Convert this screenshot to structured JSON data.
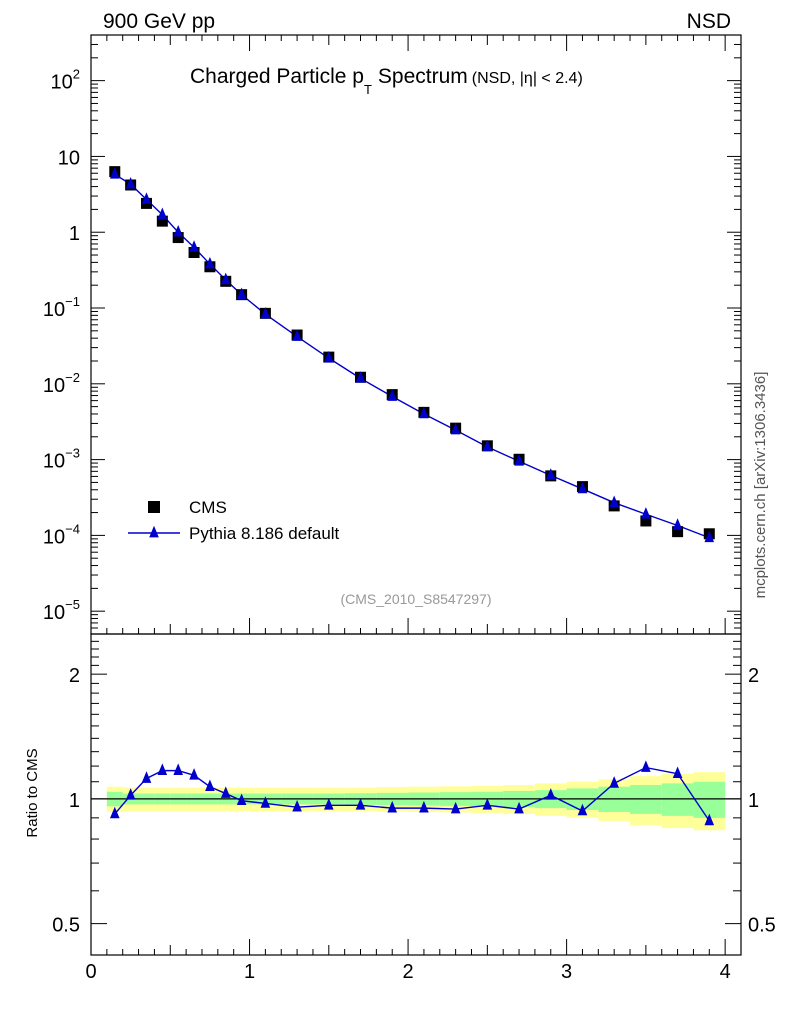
{
  "header": {
    "left": "900 GeV pp",
    "right": "NSD"
  },
  "side_label": "mcplots.cern.ch [arXiv:1306.3436]",
  "chart_data": [
    {
      "type": "scatter",
      "panel": "main",
      "title_main": "Charged Particle p",
      "title_sub": "T",
      "title_word": "Spectrum",
      "title_note": "(NSD, |η| < 2.4)",
      "watermark": "(CMS_2010_S8547297)",
      "y_log": true,
      "ylim": [
        5e-06,
        400
      ],
      "xlim": [
        0,
        4.1
      ],
      "ytick_labels": [
        {
          "base": "10",
          "exp": "2",
          "value": 100
        },
        {
          "base": "10",
          "exp": "",
          "value": 10
        },
        {
          "base": "1",
          "exp": "",
          "value": 1
        },
        {
          "base": "10",
          "exp": "−1",
          "value": 0.1
        },
        {
          "base": "10",
          "exp": "−2",
          "value": 0.01
        },
        {
          "base": "10",
          "exp": "−3",
          "value": 0.001
        },
        {
          "base": "10",
          "exp": "−4",
          "value": 0.0001
        },
        {
          "base": "10",
          "exp": "−5",
          "value": 1e-05
        }
      ],
      "x": [
        0.15,
        0.25,
        0.35,
        0.45,
        0.55,
        0.65,
        0.75,
        0.85,
        0.95,
        1.1,
        1.3,
        1.5,
        1.7,
        1.9,
        2.1,
        2.3,
        2.5,
        2.7,
        2.9,
        3.1,
        3.3,
        3.5,
        3.7,
        3.9
      ],
      "legend": [
        {
          "label": "CMS",
          "marker": "square",
          "color": "#000000"
        },
        {
          "label": "Pythia 8.186 default",
          "marker": "triangle",
          "color": "#0000cc"
        }
      ],
      "series": [
        {
          "name": "CMS",
          "color": "#000000",
          "values": [
            6.3,
            4.2,
            2.4,
            1.4,
            0.85,
            0.54,
            0.35,
            0.225,
            0.15,
            0.085,
            0.044,
            0.0225,
            0.0122,
            0.0072,
            0.0042,
            0.0026,
            0.00152,
            0.00101,
            0.00061,
            0.00044,
            0.000245,
            0.000155,
            0.000112,
            0.000105
          ]
        },
        {
          "name": "Pythia 8.186 default",
          "color": "#0000cc",
          "values": [
            5.8,
            4.3,
            2.7,
            1.7,
            1.0,
            0.63,
            0.38,
            0.235,
            0.15,
            0.083,
            0.042,
            0.0218,
            0.0118,
            0.0068,
            0.004,
            0.00245,
            0.00147,
            0.00095,
            0.00062,
            0.00041,
            0.00027,
            0.00019,
            0.000135,
            9.3e-05
          ]
        }
      ]
    },
    {
      "type": "line",
      "panel": "ratio",
      "ylabel": "Ratio to CMS",
      "y_log": true,
      "ylim": [
        0.42,
        2.5
      ],
      "ytick_labels": [
        {
          "label": "2",
          "value": 2
        },
        {
          "label": "1",
          "value": 1
        },
        {
          "label": "0.5",
          "value": 0.5
        }
      ],
      "xlim": [
        0,
        4.1
      ],
      "xtick_labels": [
        "0",
        "1",
        "2",
        "3",
        "4"
      ],
      "x": [
        0.15,
        0.25,
        0.35,
        0.45,
        0.55,
        0.65,
        0.75,
        0.85,
        0.95,
        1.1,
        1.3,
        1.5,
        1.7,
        1.9,
        2.1,
        2.3,
        2.5,
        2.7,
        2.9,
        3.1,
        3.3,
        3.5,
        3.7,
        3.9
      ],
      "series": [
        {
          "name": "Pythia 8.186 default",
          "color": "#0000cc",
          "values": [
            0.92,
            1.02,
            1.12,
            1.17,
            1.17,
            1.14,
            1.07,
            1.03,
            0.99,
            0.975,
            0.955,
            0.965,
            0.965,
            0.95,
            0.95,
            0.945,
            0.965,
            0.945,
            1.02,
            0.935,
            1.09,
            1.19,
            1.15,
            0.885
          ]
        }
      ],
      "uncertainty_bands": {
        "edges": [
          0.1,
          0.2,
          0.3,
          0.4,
          0.5,
          0.6,
          0.7,
          0.8,
          0.9,
          1.0,
          1.2,
          1.4,
          1.6,
          1.8,
          2.0,
          2.2,
          2.4,
          2.6,
          2.8,
          3.0,
          3.2,
          3.4,
          3.6,
          3.8,
          4.0
        ],
        "yellow": [
          0.07,
          0.065,
          0.065,
          0.065,
          0.065,
          0.065,
          0.065,
          0.065,
          0.065,
          0.065,
          0.065,
          0.065,
          0.065,
          0.068,
          0.07,
          0.072,
          0.075,
          0.08,
          0.09,
          0.1,
          0.115,
          0.135,
          0.15,
          0.16
        ],
        "green": [
          0.04,
          0.03,
          0.03,
          0.03,
          0.03,
          0.03,
          0.03,
          0.03,
          0.03,
          0.03,
          0.03,
          0.03,
          0.032,
          0.034,
          0.036,
          0.038,
          0.04,
          0.045,
          0.05,
          0.06,
          0.07,
          0.08,
          0.09,
          0.1
        ],
        "yellow_color": "#ffff99",
        "green_color": "#99ff99"
      }
    }
  ]
}
